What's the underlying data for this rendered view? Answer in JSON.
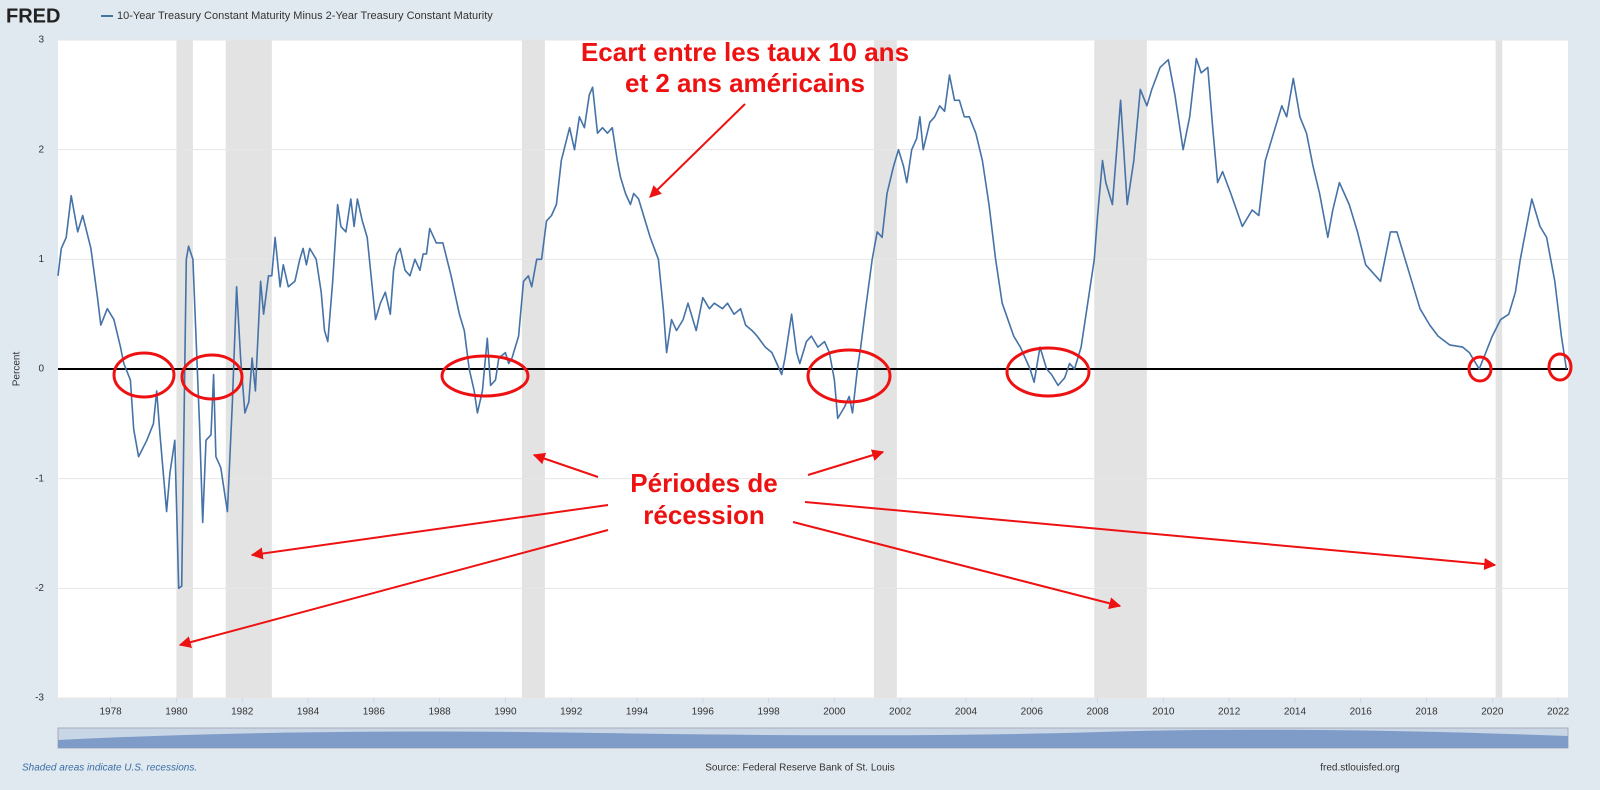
{
  "chart_data": {
    "type": "line",
    "logo": "FRED",
    "series_name": "10-Year Treasury Constant Maturity Minus 2-Year Treasury Constant Maturity",
    "ylabel": "Percent",
    "color": "#4572a7",
    "grid": true,
    "xlim": [
      1976.4,
      2022.3
    ],
    "ylim": [
      -3,
      3
    ],
    "xticks": [
      1978,
      1980,
      1982,
      1984,
      1986,
      1988,
      1990,
      1992,
      1994,
      1996,
      1998,
      2000,
      2002,
      2004,
      2006,
      2008,
      2010,
      2012,
      2014,
      2016,
      2018,
      2020,
      2022
    ],
    "yticks": [
      -3,
      -2,
      -1,
      0,
      1,
      2,
      3
    ],
    "recessions": [
      [
        1980.0,
        1980.5
      ],
      [
        1981.5,
        1982.9
      ],
      [
        1990.5,
        1991.2
      ],
      [
        2001.2,
        2001.9
      ],
      [
        2007.9,
        2009.5
      ],
      [
        2020.1,
        2020.3
      ]
    ],
    "x": [
      1976.4,
      1976.5,
      1976.65,
      1976.8,
      1977.0,
      1977.15,
      1977.4,
      1977.6,
      1977.7,
      1977.9,
      1978.1,
      1978.3,
      1978.4,
      1978.6,
      1978.7,
      1978.85,
      1979.1,
      1979.3,
      1979.4,
      1979.5,
      1979.7,
      1979.8,
      1979.95,
      1980.07,
      1980.16,
      1980.3,
      1980.37,
      1980.5,
      1980.7,
      1980.8,
      1980.9,
      1981.05,
      1981.13,
      1981.2,
      1981.35,
      1981.55,
      1981.7,
      1981.83,
      1981.95,
      1982.08,
      1982.2,
      1982.3,
      1982.4,
      1982.56,
      1982.65,
      1982.8,
      1982.9,
      1983.0,
      1983.15,
      1983.25,
      1983.4,
      1983.6,
      1983.75,
      1983.85,
      1983.95,
      1984.05,
      1984.25,
      1984.4,
      1984.5,
      1984.6,
      1984.75,
      1984.9,
      1985.0,
      1985.15,
      1985.3,
      1985.4,
      1985.5,
      1985.65,
      1985.8,
      1986.05,
      1986.2,
      1986.35,
      1986.5,
      1986.6,
      1986.7,
      1986.8,
      1986.95,
      1987.1,
      1987.25,
      1987.4,
      1987.5,
      1987.6,
      1987.7,
      1987.9,
      1988.1,
      1988.35,
      1988.6,
      1988.75,
      1988.9,
      1989.05,
      1989.15,
      1989.3,
      1989.45,
      1989.55,
      1989.7,
      1989.8,
      1990.0,
      1990.1,
      1990.2,
      1990.4,
      1990.55,
      1990.7,
      1990.8,
      1990.95,
      1991.1,
      1991.25,
      1991.4,
      1991.55,
      1991.7,
      1991.95,
      1992.1,
      1992.25,
      1992.4,
      1992.55,
      1992.65,
      1992.8,
      1992.95,
      1993.1,
      1993.25,
      1993.4,
      1993.5,
      1993.65,
      1993.8,
      1993.9,
      1994.05,
      1994.25,
      1994.4,
      1994.65,
      1994.8,
      1994.9,
      1995.05,
      1995.2,
      1995.4,
      1995.55,
      1995.7,
      1995.8,
      1996.0,
      1996.2,
      1996.35,
      1996.6,
      1996.75,
      1996.95,
      1997.15,
      1997.3,
      1997.5,
      1997.65,
      1997.9,
      1998.1,
      1998.25,
      1998.4,
      1998.5,
      1998.7,
      1998.85,
      1998.95,
      1999.15,
      1999.3,
      1999.5,
      1999.7,
      1999.85,
      2000.0,
      2000.1,
      2000.3,
      2000.45,
      2000.55,
      2000.7,
      2000.8,
      2000.95,
      2001.15,
      2001.3,
      2001.45,
      2001.6,
      2001.8,
      2001.95,
      2002.1,
      2002.2,
      2002.35,
      2002.5,
      2002.6,
      2002.7,
      2002.9,
      2003.05,
      2003.2,
      2003.35,
      2003.5,
      2003.65,
      2003.8,
      2003.95,
      2004.1,
      2004.3,
      2004.5,
      2004.7,
      2004.9,
      2005.1,
      2005.45,
      2005.65,
      2005.95,
      2006.07,
      2006.25,
      2006.45,
      2006.6,
      2006.8,
      2007.0,
      2007.15,
      2007.3,
      2007.5,
      2007.7,
      2007.9,
      2008.0,
      2008.15,
      2008.25,
      2008.45,
      2008.7,
      2008.9,
      2009.1,
      2009.3,
      2009.5,
      2009.65,
      2009.9,
      2010.15,
      2010.35,
      2010.6,
      2010.8,
      2011.0,
      2011.15,
      2011.35,
      2011.5,
      2011.65,
      2011.8,
      2012.05,
      2012.4,
      2012.7,
      2012.9,
      2013.1,
      2013.4,
      2013.6,
      2013.75,
      2013.95,
      2014.15,
      2014.35,
      2014.55,
      2014.75,
      2015.0,
      2015.15,
      2015.35,
      2015.65,
      2015.9,
      2016.15,
      2016.6,
      2016.9,
      2017.1,
      2017.3,
      2017.5,
      2017.8,
      2018.1,
      2018.35,
      2018.7,
      2019.1,
      2019.3,
      2019.6,
      2019.8,
      2020.0,
      2020.25,
      2020.5,
      2020.7,
      2020.85,
      2021.2,
      2021.45,
      2021.65,
      2021.9,
      2022.1,
      2022.25
    ],
    "values": [
      0.85,
      1.1,
      1.2,
      1.58,
      1.25,
      1.4,
      1.1,
      0.65,
      0.4,
      0.55,
      0.45,
      0.2,
      0.05,
      -0.1,
      -0.55,
      -0.8,
      -0.65,
      -0.5,
      -0.2,
      -0.6,
      -1.3,
      -0.95,
      -0.65,
      -2.0,
      -1.98,
      1.0,
      1.12,
      1.0,
      -0.5,
      -1.4,
      -0.65,
      -0.6,
      -0.05,
      -0.8,
      -0.9,
      -1.3,
      -0.3,
      0.75,
      0.1,
      -0.4,
      -0.3,
      0.1,
      -0.2,
      0.8,
      0.5,
      0.85,
      0.85,
      1.2,
      0.75,
      0.95,
      0.75,
      0.8,
      1.0,
      1.1,
      0.95,
      1.1,
      1.0,
      0.7,
      0.35,
      0.25,
      0.8,
      1.5,
      1.3,
      1.25,
      1.55,
      1.3,
      1.55,
      1.35,
      1.2,
      0.45,
      0.6,
      0.7,
      0.5,
      0.9,
      1.05,
      1.1,
      0.9,
      0.85,
      1.0,
      0.9,
      1.05,
      1.05,
      1.28,
      1.15,
      1.15,
      0.85,
      0.5,
      0.35,
      0.0,
      -0.2,
      -0.4,
      -0.2,
      0.28,
      -0.15,
      -0.1,
      0.1,
      0.15,
      0.05,
      0.1,
      0.3,
      0.8,
      0.85,
      0.75,
      1.0,
      1.0,
      1.35,
      1.4,
      1.5,
      1.9,
      2.2,
      2.0,
      2.3,
      2.2,
      2.5,
      2.57,
      2.15,
      2.2,
      2.15,
      2.2,
      1.9,
      1.75,
      1.6,
      1.5,
      1.6,
      1.55,
      1.35,
      1.2,
      1.0,
      0.55,
      0.15,
      0.45,
      0.35,
      0.45,
      0.6,
      0.45,
      0.35,
      0.65,
      0.55,
      0.6,
      0.55,
      0.6,
      0.5,
      0.55,
      0.4,
      0.35,
      0.3,
      0.2,
      0.15,
      0.05,
      -0.05,
      0.1,
      0.5,
      0.15,
      0.05,
      0.25,
      0.3,
      0.2,
      0.25,
      0.15,
      -0.1,
      -0.45,
      -0.35,
      -0.25,
      -0.4,
      0.0,
      0.2,
      0.55,
      1.0,
      1.25,
      1.2,
      1.6,
      1.85,
      2.0,
      1.85,
      1.7,
      2.0,
      2.1,
      2.3,
      2.0,
      2.25,
      2.3,
      2.4,
      2.35,
      2.68,
      2.45,
      2.45,
      2.3,
      2.3,
      2.15,
      1.9,
      1.5,
      1.0,
      0.6,
      0.3,
      0.2,
      0.0,
      -0.12,
      0.2,
      0.0,
      -0.05,
      -0.15,
      -0.08,
      0.05,
      0.0,
      0.2,
      0.6,
      1.0,
      1.4,
      1.9,
      1.7,
      1.5,
      2.45,
      1.5,
      1.9,
      2.55,
      2.4,
      2.55,
      2.75,
      2.82,
      2.5,
      2.0,
      2.3,
      2.83,
      2.7,
      2.75,
      2.2,
      1.7,
      1.8,
      1.6,
      1.3,
      1.45,
      1.4,
      1.9,
      2.2,
      2.4,
      2.3,
      2.65,
      2.3,
      2.15,
      1.85,
      1.6,
      1.2,
      1.45,
      1.7,
      1.5,
      1.25,
      0.95,
      0.8,
      1.25,
      1.25,
      1.05,
      0.85,
      0.55,
      0.4,
      0.3,
      0.22,
      0.2,
      0.15,
      0.0,
      0.15,
      0.3,
      0.45,
      0.5,
      0.7,
      1.0,
      1.55,
      1.3,
      1.2,
      0.8,
      0.3,
      0.0
    ],
    "annotations": [
      "Ecart entre les taux 10 ans",
      "et 2 ans américains",
      "Périodes de",
      "récession"
    ],
    "note": "Shaded areas indicate U.S. recessions.",
    "source": "Source: Federal Reserve Bank of St. Louis",
    "url": "fred.stlouisfed.org"
  }
}
